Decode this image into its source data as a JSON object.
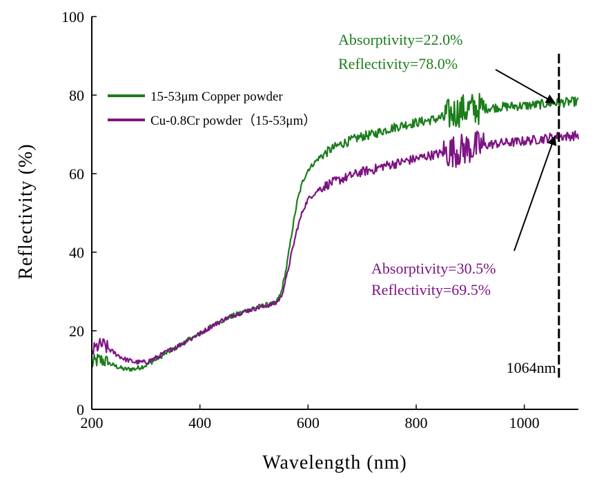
{
  "chart_data": {
    "type": "line",
    "title": "",
    "xlabel": "Wavelength (nm)",
    "ylabel": "Reflectivity (%)",
    "xlim": [
      200,
      1100
    ],
    "ylim": [
      0,
      100
    ],
    "x_ticks": [
      "200",
      "400",
      "600",
      "800",
      "1000"
    ],
    "y_ticks": [
      "0",
      "20",
      "40",
      "60",
      "80",
      "100"
    ],
    "grid": false,
    "legend_position": "upper-left",
    "series": [
      {
        "name": "15-53μm Copper powder",
        "color": "#1b7d1b",
        "noise": 1.2,
        "x": [
          200,
          210,
          220,
          240,
          260,
          280,
          300,
          320,
          340,
          360,
          380,
          400,
          420,
          440,
          460,
          480,
          500,
          520,
          540,
          550,
          560,
          570,
          580,
          590,
          600,
          620,
          640,
          660,
          680,
          700,
          720,
          740,
          760,
          780,
          800,
          820,
          840,
          860,
          880,
          900,
          920,
          940,
          960,
          980,
          1000,
          1020,
          1040,
          1060,
          1080,
          1100
        ],
        "y": [
          11.5,
          12.5,
          12.5,
          11.2,
          10.2,
          10.3,
          11.2,
          12.8,
          14.5,
          16.0,
          17.8,
          19.2,
          21.0,
          22.5,
          23.8,
          24.8,
          25.8,
          26.5,
          27.0,
          29.5,
          36.0,
          45.0,
          53.0,
          58.0,
          61.0,
          64.0,
          66.0,
          67.5,
          68.5,
          69.5,
          70.0,
          71.0,
          71.8,
          72.5,
          73.0,
          73.5,
          74.0,
          75.0,
          76.0,
          76.5,
          76.5,
          76.8,
          77.0,
          77.2,
          77.3,
          77.5,
          77.8,
          78.0,
          78.2,
          78.4
        ]
      },
      {
        "name": "Cu-0.8Cr powder（15-53μm）",
        "color": "#7e1483",
        "noise": 1.2,
        "x": [
          200,
          210,
          220,
          240,
          260,
          280,
          300,
          320,
          340,
          360,
          380,
          400,
          420,
          440,
          460,
          480,
          500,
          520,
          540,
          550,
          560,
          570,
          580,
          590,
          600,
          620,
          640,
          660,
          680,
          700,
          720,
          740,
          760,
          780,
          800,
          820,
          840,
          860,
          880,
          900,
          920,
          940,
          960,
          980,
          1000,
          1020,
          1040,
          1060,
          1080,
          1100
        ],
        "y": [
          14.5,
          16.0,
          16.5,
          14.5,
          12.8,
          12.0,
          12.0,
          13.2,
          14.8,
          16.2,
          17.8,
          19.3,
          21.0,
          22.6,
          23.8,
          24.8,
          25.6,
          26.3,
          27.0,
          28.5,
          33.5,
          40.0,
          46.0,
          50.5,
          53.5,
          56.0,
          57.5,
          58.5,
          59.5,
          60.5,
          61.0,
          62.0,
          62.5,
          63.2,
          63.8,
          64.5,
          65.0,
          65.5,
          66.0,
          66.5,
          67.0,
          67.5,
          67.8,
          68.0,
          68.3,
          68.6,
          69.0,
          69.5,
          69.5,
          69.8
        ]
      }
    ],
    "vline": {
      "x": 1064,
      "label": "1064nm",
      "color": "#000000"
    },
    "annotations": [
      {
        "lines": [
          "Absorptivity=22.0%",
          "Reflectivity=78.0%"
        ],
        "color": "#1b7d1b",
        "points_to": {
          "x": 1064,
          "y": 78.0
        }
      },
      {
        "lines": [
          "Absorptivity=30.5%",
          "Reflectivity=69.5%"
        ],
        "color": "#7e1483",
        "points_to": {
          "x": 1064,
          "y": 69.5
        }
      }
    ]
  }
}
